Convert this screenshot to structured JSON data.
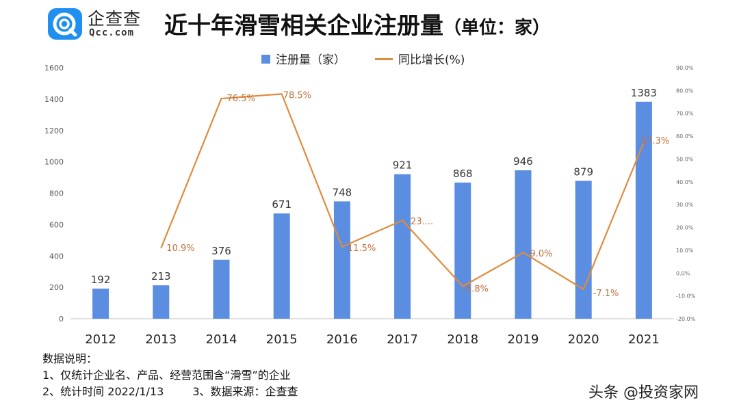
{
  "header": {
    "brand_cn": "企查查",
    "brand_en": "Qcc.com",
    "title": "近十年滑雪相关企业注册量",
    "title_unit": "（单位：家）"
  },
  "legend": {
    "bar_label": "注册量（家）",
    "line_label": "同比增长(%)"
  },
  "colors": {
    "bar": "#5b8ee0",
    "line": "#e08a3c",
    "label": "#c0703a",
    "logo": "#1f8ff0"
  },
  "chart_data": {
    "type": "bar",
    "categories": [
      "2012",
      "2013",
      "2014",
      "2015",
      "2016",
      "2017",
      "2018",
      "2019",
      "2020",
      "2021"
    ],
    "series": [
      {
        "name": "注册量（家）",
        "type": "bar",
        "axis": "left",
        "values": [
          192,
          213,
          376,
          671,
          748,
          921,
          868,
          946,
          879,
          1383
        ]
      },
      {
        "name": "同比增长(%)",
        "type": "line",
        "axis": "right",
        "values": [
          null,
          10.9,
          76.5,
          78.5,
          11.5,
          23.1,
          -5.8,
          9.0,
          -7.1,
          57.3
        ],
        "labels": [
          "",
          "10.9%",
          "76.5%",
          "78.5%",
          "11.5%",
          "23....",
          "-5.8%",
          "9.0%",
          "-7.1%",
          "57.3%"
        ]
      }
    ],
    "y_left": {
      "min": 0,
      "max": 1600,
      "ticks": [
        "0",
        "200",
        "400",
        "600",
        "800",
        "1000",
        "1200",
        "1400",
        "1600"
      ]
    },
    "y_right": {
      "min": -20,
      "max": 90,
      "ticks": [
        "-20.0%",
        "-10.0%",
        "0.0%",
        "10.0%",
        "20.0%",
        "30.0%",
        "40.0%",
        "50.0%",
        "60.0%",
        "70.0%",
        "80.0%",
        "90.0%"
      ]
    },
    "grid": false,
    "legend_position": "top"
  },
  "notes": {
    "heading": "数据说明：",
    "line1": "1、仅统计企业名、产品、经营范围含“滑雪”的企业",
    "line2": "2、统计时间 2022/1/13",
    "line3": "3、数据来源：企查查"
  },
  "watermark": "头条 @投资家网"
}
